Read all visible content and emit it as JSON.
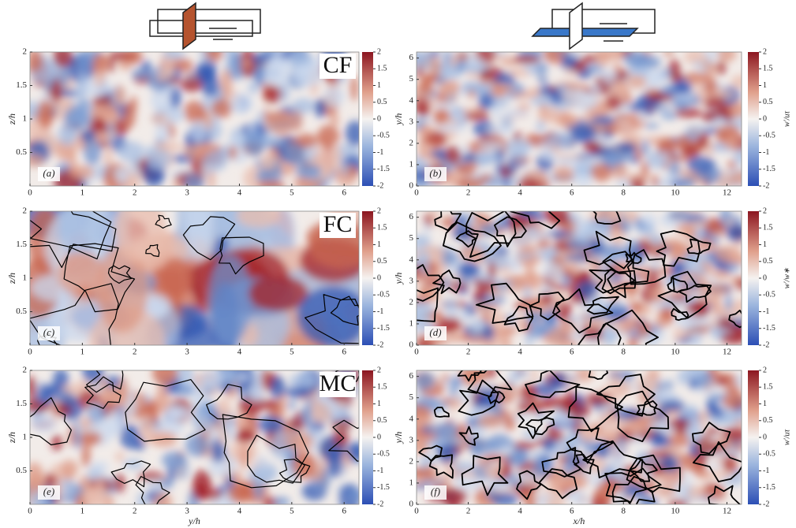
{
  "panels": [
    {
      "label": "(a)",
      "tag": "CF",
      "xlim": [
        0,
        6.283
      ],
      "ylim": [
        0,
        2
      ],
      "xticks": [
        0,
        1,
        2,
        3,
        4,
        5,
        6
      ],
      "yticks": [
        0.5,
        1,
        1.5,
        2
      ],
      "ylabel": "z/h"
    },
    {
      "label": "(b)",
      "xlim": [
        0,
        12.566
      ],
      "ylim": [
        0,
        6.283
      ],
      "xticks": [
        0,
        2,
        4,
        6,
        8,
        10,
        12
      ],
      "yticks": [
        0,
        1,
        2,
        3,
        4,
        5,
        6
      ],
      "ylabel": "y/h"
    },
    {
      "label": "(c)",
      "tag": "FC",
      "xlim": [
        0,
        6.283
      ],
      "ylim": [
        0,
        2
      ],
      "xticks": [
        0,
        1,
        2,
        3,
        4,
        5,
        6
      ],
      "yticks": [
        0.5,
        1,
        1.5,
        2
      ],
      "ylabel": "z/h"
    },
    {
      "label": "(d)",
      "xlim": [
        0,
        12.566
      ],
      "ylim": [
        0,
        6.283
      ],
      "xticks": [
        0,
        2,
        4,
        6,
        8,
        10,
        12
      ],
      "yticks": [
        0,
        1,
        2,
        3,
        4,
        5,
        6
      ],
      "ylabel": "y/h"
    },
    {
      "label": "(e)",
      "tag": "MC",
      "xlim": [
        0,
        6.283
      ],
      "ylim": [
        0,
        2
      ],
      "xticks": [
        0,
        1,
        2,
        3,
        4,
        5,
        6
      ],
      "yticks": [
        0.5,
        1,
        1.5,
        2
      ],
      "ylabel": "z/h",
      "xlabel": "y/h"
    },
    {
      "label": "(f)",
      "xlim": [
        0,
        12.566
      ],
      "ylim": [
        0,
        6.283
      ],
      "xticks": [
        0,
        2,
        4,
        6,
        8,
        10,
        12
      ],
      "yticks": [
        0,
        1,
        2,
        3,
        4,
        5,
        6
      ],
      "ylabel": "y/h",
      "xlabel": "x/h"
    }
  ],
  "colorbars": [
    {
      "lim": [
        -2,
        2
      ],
      "ticks": [
        2,
        1.5,
        1,
        0.5,
        0,
        -0.5,
        -1,
        -1.5,
        -2
      ]
    },
    {
      "lim": [
        -2,
        2
      ],
      "ticks": [
        2,
        1.5,
        1,
        0.5,
        0,
        -0.5,
        -1,
        -1.5,
        -2
      ],
      "label": "w′/uτ"
    },
    {
      "lim": [
        -2,
        2
      ],
      "ticks": [
        2,
        1.5,
        1,
        0.5,
        0,
        -0.5,
        -1,
        -1.5,
        -2
      ]
    },
    {
      "lim": [
        -2,
        2
      ],
      "ticks": [
        2,
        1.5,
        1,
        0.5,
        0,
        -0.5,
        -1,
        -1.5,
        -2
      ],
      "label": "w′/w∗"
    },
    {
      "lim": [
        -2,
        2
      ],
      "ticks": [
        2,
        1.5,
        1,
        0.5,
        0,
        -0.5,
        -1,
        -1.5,
        -2
      ]
    },
    {
      "lim": [
        -2,
        2
      ],
      "ticks": [
        2,
        1.5,
        1,
        0.5,
        0,
        -0.5,
        -1,
        -1.5,
        -2
      ],
      "label": "w′/uτ"
    }
  ]
}
